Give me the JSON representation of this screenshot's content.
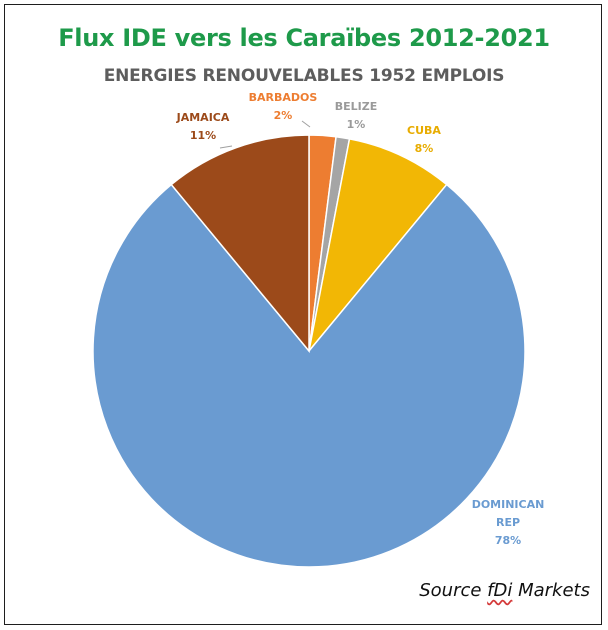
{
  "chart_data": {
    "type": "pie",
    "title": "Flux IDE vers les Caraïbes 2012-2021",
    "subtitle": "ENERGIES RENOUVELABLES 1952 EMPLOIS",
    "start_angle_deg": 0,
    "slices": [
      {
        "label": "BARBADOS",
        "pct_label": "2%",
        "value": 2,
        "color": "#ed7d31"
      },
      {
        "label": "BELIZE",
        "pct_label": "1%",
        "value": 1,
        "color": "#a5a5a5"
      },
      {
        "label": "CUBA",
        "pct_label": "8%",
        "value": 8,
        "color": "#f2b705"
      },
      {
        "label": "DOMINICAN REP",
        "pct_label": "78%",
        "value": 78,
        "color": "#6a9bd1"
      },
      {
        "label": "JAMAICA",
        "pct_label": "11%",
        "value": 11,
        "color": "#9c4a1a"
      }
    ]
  },
  "source": {
    "prefix": "Source ",
    "brand": "fDi",
    "suffix": " Markets"
  }
}
